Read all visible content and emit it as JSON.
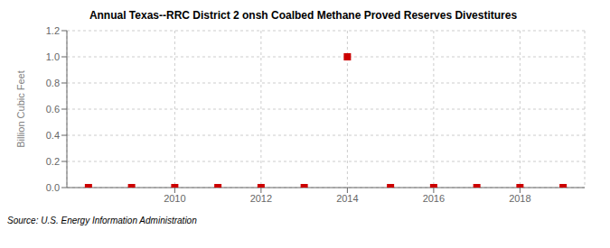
{
  "chart_data": {
    "type": "scatter",
    "title": "Annual Texas--RRC District 2 onsh Coalbed Methane Proved Reserves Divestitures",
    "y_label": "Billion Cubic Feet",
    "annotations": [
      "Source: U.S. Energy Information Administration"
    ],
    "x": [
      2008,
      2009,
      2010,
      2011,
      2012,
      2013,
      2014,
      2015,
      2016,
      2017,
      2018,
      2019
    ],
    "values": [
      0.0,
      0.0,
      0.0,
      0.0,
      0.0,
      0.0,
      1.0,
      0.0,
      0.0,
      0.0,
      0.0,
      0.0
    ],
    "color": "#cc0000",
    "marker": "square",
    "xlim": [
      2007.5,
      2019.5
    ],
    "xticks": [
      2010,
      2012,
      2014,
      2016,
      2018
    ],
    "ylim": [
      0.0,
      1.2
    ],
    "yticks": [
      {
        "value": 0.0,
        "label": "0.0"
      },
      0.2,
      0.4,
      0.6,
      0.8,
      {
        "value": 1.0,
        "label": "1.0"
      },
      1.2
    ],
    "grid": true
  }
}
